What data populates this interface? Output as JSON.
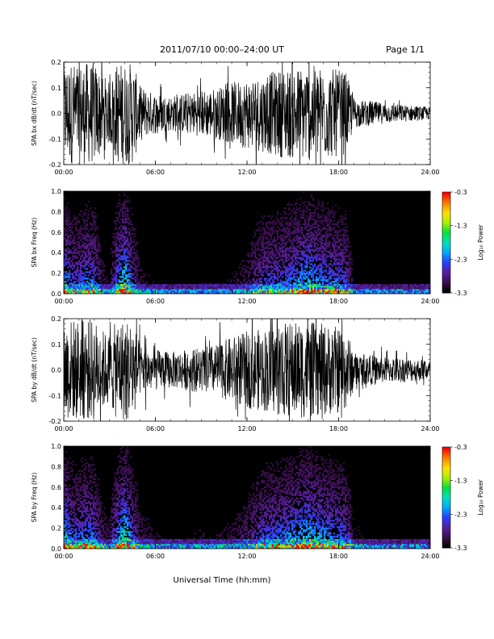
{
  "header": {
    "title": "2011/07/10   00:00–24:00 UT",
    "page": "Page 1/1"
  },
  "x_axis": {
    "label": "Universal Time (hh:mm)",
    "range_hours": [
      0,
      24
    ],
    "tick_hours": [
      0,
      6,
      12,
      18,
      24
    ],
    "tick_labels": [
      "00:00",
      "06:00",
      "12:00",
      "18:00",
      "24:00"
    ]
  },
  "colorbar": {
    "label": "Log₁₀ Power",
    "range": [
      -3.3,
      -0.3
    ],
    "ticks": [
      -0.3,
      -1.3,
      -2.3,
      -3.3
    ],
    "tick_labels": [
      "-0.3",
      "-1.3",
      "-2.3",
      "-3.3"
    ],
    "colors": [
      "#000000",
      "#3b0f4f",
      "#5a1fa0",
      "#2a3cff",
      "#00a8ff",
      "#00e0c0",
      "#00e040",
      "#a8f000",
      "#ffe000",
      "#ff8000",
      "#ff0000"
    ]
  },
  "chart_data": [
    {
      "type": "line",
      "ylabel": "SPA bx dB/dt (nT/sec)",
      "ylim": [
        -0.2,
        0.2
      ],
      "y_ticks": [
        -0.2,
        -0.1,
        0.0,
        0.1,
        0.2
      ],
      "y_tick_labels": [
        "-0.2",
        "-0.1",
        "0.0",
        "0.1",
        "0.2"
      ],
      "x_unit": "hours UT",
      "envelope": {
        "x": [
          0,
          0.5,
          1,
          1.5,
          2,
          2.5,
          3,
          3.5,
          4,
          4.5,
          5,
          5.5,
          6,
          7,
          8,
          9,
          10,
          11,
          12,
          13,
          14,
          15,
          16,
          17,
          18,
          18.5,
          19,
          19.5,
          20,
          21,
          22,
          23,
          24
        ],
        "y": [
          0.2,
          0.2,
          0.2,
          0.2,
          0.2,
          0.16,
          0.12,
          0.2,
          0.2,
          0.2,
          0.11,
          0.09,
          0.08,
          0.07,
          0.08,
          0.09,
          0.1,
          0.12,
          0.14,
          0.15,
          0.17,
          0.18,
          0.19,
          0.18,
          0.17,
          0.16,
          0.06,
          0.05,
          0.05,
          0.04,
          0.035,
          0.03,
          0.025
        ]
      }
    },
    {
      "type": "heatmap",
      "ylabel": "SPA bx Freq (Hz)",
      "ylim": [
        0.0,
        1.0
      ],
      "y_ticks": [
        0.0,
        0.2,
        0.4,
        0.6,
        0.8,
        1.0
      ],
      "y_tick_labels": [
        "0.0",
        "0.2",
        "0.4",
        "0.6",
        "0.8",
        "1.0"
      ],
      "x_unit": "hours UT",
      "activity": {
        "x": [
          0,
          0.5,
          1,
          1.5,
          2,
          2.5,
          3,
          3.5,
          4,
          4.5,
          5,
          6,
          7,
          8,
          9,
          10,
          11,
          12,
          13,
          14,
          15,
          16,
          17,
          18,
          18.5,
          19,
          20,
          21,
          22,
          23,
          24
        ],
        "y": [
          0.75,
          0.5,
          0.45,
          0.6,
          0.55,
          0.2,
          0.1,
          0.6,
          0.95,
          0.45,
          0.15,
          0.1,
          0.08,
          0.08,
          0.1,
          0.1,
          0.12,
          0.2,
          0.45,
          0.5,
          0.6,
          0.75,
          0.6,
          0.55,
          0.45,
          0.1,
          0.06,
          0.05,
          0.05,
          0.05,
          0.05
        ]
      }
    },
    {
      "type": "line",
      "ylabel": "SPA by dB/dt (nT/sec)",
      "ylim": [
        -0.2,
        0.2
      ],
      "y_ticks": [
        -0.2,
        -0.1,
        0.0,
        0.1,
        0.2
      ],
      "y_tick_labels": [
        "-0.2",
        "-0.1",
        "0.0",
        "0.1",
        "0.2"
      ],
      "x_unit": "hours UT",
      "envelope": {
        "x": [
          0,
          0.5,
          1,
          1.5,
          2,
          2.5,
          3,
          3.5,
          4,
          4.5,
          5,
          5.5,
          6,
          7,
          8,
          9,
          10,
          11,
          12,
          13,
          14,
          15,
          16,
          17,
          18,
          18.5,
          19,
          19.5,
          20,
          21,
          22,
          23,
          24
        ],
        "y": [
          0.2,
          0.2,
          0.2,
          0.2,
          0.2,
          0.16,
          0.14,
          0.2,
          0.2,
          0.2,
          0.1,
          0.09,
          0.08,
          0.07,
          0.08,
          0.09,
          0.1,
          0.13,
          0.15,
          0.16,
          0.18,
          0.19,
          0.19,
          0.18,
          0.17,
          0.16,
          0.07,
          0.06,
          0.06,
          0.05,
          0.05,
          0.045,
          0.04
        ]
      }
    },
    {
      "type": "heatmap",
      "ylabel": "SPA by Freq (Hz)",
      "ylim": [
        0.0,
        1.0
      ],
      "y_ticks": [
        0.0,
        0.2,
        0.4,
        0.6,
        0.8,
        1.0
      ],
      "y_tick_labels": [
        "0.0",
        "0.2",
        "0.4",
        "0.6",
        "0.8",
        "1.0"
      ],
      "x_unit": "hours UT",
      "activity": {
        "x": [
          0,
          0.5,
          1,
          1.5,
          2,
          2.5,
          3,
          3.5,
          4,
          4.5,
          5,
          6,
          7,
          8,
          9,
          10,
          11,
          12,
          13,
          14,
          15,
          16,
          17,
          18,
          18.5,
          19,
          20,
          21,
          22,
          23,
          24
        ],
        "y": [
          0.85,
          0.55,
          0.5,
          0.65,
          0.55,
          0.25,
          0.15,
          0.65,
          0.95,
          0.5,
          0.2,
          0.12,
          0.1,
          0.1,
          0.12,
          0.12,
          0.15,
          0.25,
          0.5,
          0.55,
          0.65,
          0.8,
          0.65,
          0.6,
          0.5,
          0.15,
          0.08,
          0.06,
          0.06,
          0.06,
          0.06
        ]
      }
    }
  ]
}
